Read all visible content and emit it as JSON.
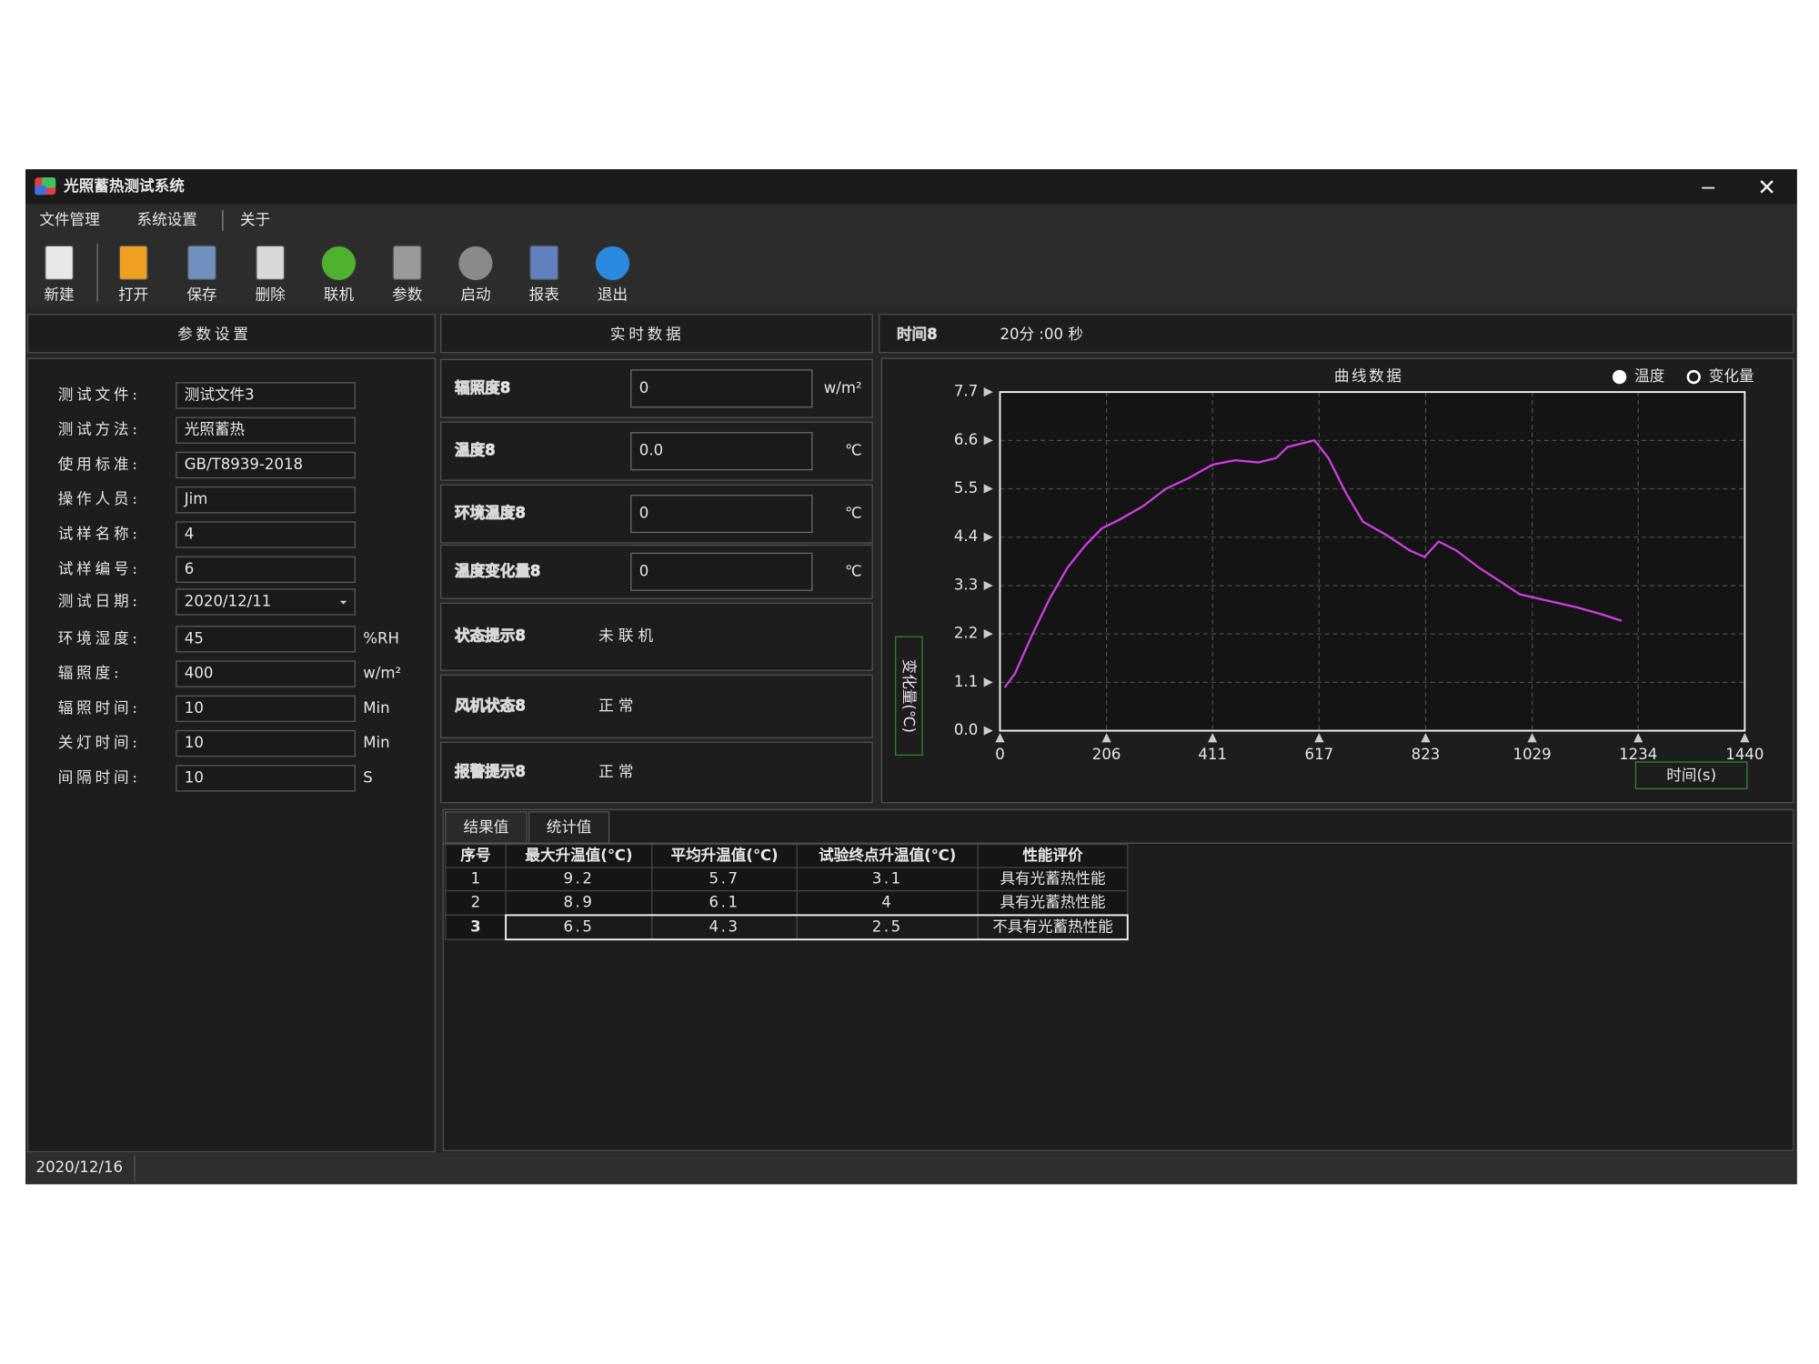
{
  "window": {
    "title": "光照蓄热测试系统"
  },
  "menu": [
    "文件管理",
    "系统设置",
    "关于"
  ],
  "toolbar": [
    {
      "label": "新建",
      "enabled": true
    },
    {
      "label": "打开",
      "enabled": true
    },
    {
      "label": "保存",
      "enabled": true
    },
    {
      "label": "删除",
      "enabled": true
    },
    {
      "label": "联机",
      "enabled": true
    },
    {
      "label": "参数",
      "enabled": false
    },
    {
      "label": "启动",
      "enabled": false
    },
    {
      "label": "报表",
      "enabled": true
    },
    {
      "label": "退出",
      "enabled": true
    }
  ],
  "params": {
    "title": "参数设置",
    "fields": [
      {
        "label": "测试文件:",
        "value": "测试文件3"
      },
      {
        "label": "测试方法:",
        "value": "光照蓄热"
      },
      {
        "label": "使用标准:",
        "value": "GB/T8939-2018"
      },
      {
        "label": "操作人员:",
        "value": "Jim"
      },
      {
        "label": "试样名称:",
        "value": "4"
      },
      {
        "label": "试样编号:",
        "value": "6"
      },
      {
        "label": "测试日期:",
        "value": "2020/12/11",
        "dropdown": true
      },
      {
        "label": "环境湿度:",
        "value": "45",
        "unit": "%RH"
      },
      {
        "label": "辐照度:",
        "value": "400",
        "unit": "w/m²"
      },
      {
        "label": "辐照时间:",
        "value": "10",
        "unit": "Min"
      },
      {
        "label": "关灯时间:",
        "value": "10",
        "unit": "Min"
      },
      {
        "label": "间隔时间:",
        "value": "10",
        "unit": "S"
      }
    ]
  },
  "realtime": {
    "title": "实时数据",
    "readings": [
      {
        "label": "辐照度8",
        "value": "0",
        "unit": "w/m²"
      },
      {
        "label": "温度8",
        "value": "0.0",
        "unit": "℃"
      },
      {
        "label": "环境温度8",
        "value": "0",
        "unit": "℃"
      },
      {
        "label": "温度变化量8",
        "value": "0",
        "unit": "℃"
      }
    ],
    "status": [
      {
        "label": "状态提示8",
        "value": "未联机"
      },
      {
        "label": "风机状态8",
        "value": "正常"
      },
      {
        "label": "报警提示8",
        "value": "正常"
      }
    ]
  },
  "time": {
    "label": "时间8",
    "value": "20分 :00 秒"
  },
  "chart_data": {
    "type": "line",
    "title": "曲线数据",
    "legend_options": [
      {
        "label": "温度",
        "selected": true
      },
      {
        "label": "变化量",
        "selected": false
      }
    ],
    "ylabel": "变化量(℃)",
    "xlabel": "时间(s)",
    "color": "#d23be6",
    "x": [
      9,
      29,
      63,
      96,
      130,
      164,
      197,
      231,
      276,
      321,
      366,
      411,
      455,
      500,
      534,
      556,
      590,
      608,
      635,
      669,
      702,
      747,
      792,
      821,
      848,
      882,
      927,
      960,
      1005,
      1061,
      1117,
      1162,
      1202
    ],
    "values": [
      0.98,
      1.3,
      2.2,
      3.0,
      3.7,
      4.2,
      4.6,
      4.8,
      5.1,
      5.5,
      5.75,
      6.05,
      6.15,
      6.1,
      6.2,
      6.45,
      6.55,
      6.6,
      6.2,
      5.4,
      4.75,
      4.45,
      4.1,
      3.95,
      4.3,
      4.1,
      3.7,
      3.45,
      3.1,
      2.95,
      2.8,
      2.65,
      2.5
    ],
    "xlim": [
      0,
      1440
    ],
    "xticks": [
      0,
      206,
      411,
      617,
      823,
      1029,
      1234,
      1440
    ],
    "ylim": [
      0,
      7.7
    ],
    "yticks": [
      {
        "value": 0,
        "label": "0.0"
      },
      1.1,
      2.2,
      3.3,
      4.4,
      5.5,
      6.6,
      7.7
    ],
    "grid": true
  },
  "tabs": [
    {
      "label": "结果值",
      "active": true
    },
    {
      "label": "统计值",
      "active": false
    }
  ],
  "table": {
    "columns": [
      "序号",
      "最大升温值(℃)",
      "平均升温值(℃)",
      "试验终点升温值(℃)",
      "性能评价"
    ],
    "rows": [
      [
        1,
        9.2,
        5.7,
        3.1,
        "具有光蓄热性能"
      ],
      [
        2,
        8.9,
        6.1,
        4.0,
        "具有光蓄热性能"
      ],
      [
        3,
        6.5,
        4.3,
        2.5,
        "不具有光蓄热性能"
      ]
    ],
    "selected_row": 2
  },
  "status_bar": "2020/12/16"
}
